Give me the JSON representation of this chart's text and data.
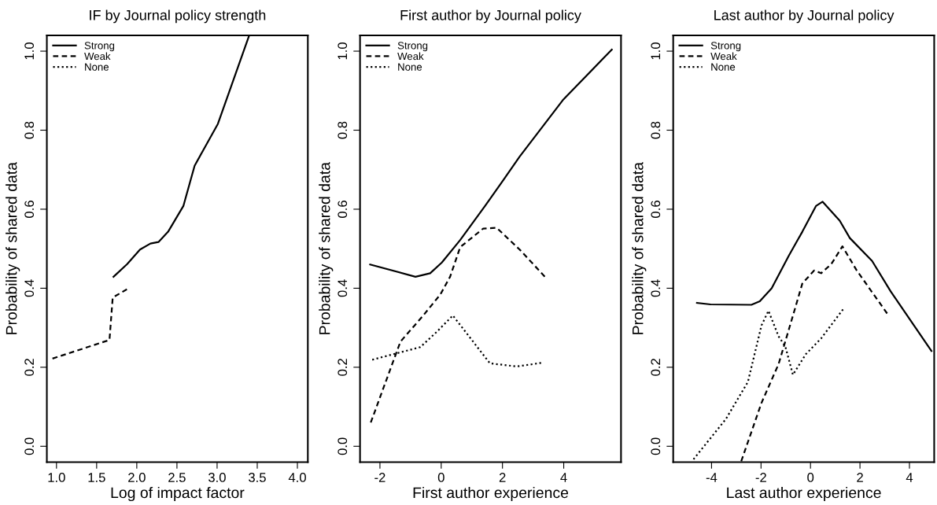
{
  "chart_data": [
    {
      "type": "line",
      "title": "IF by Journal policy strength",
      "xlabel": "Log of impact factor",
      "ylabel": "Probability of shared data",
      "xlim": [
        0.88,
        4.13
      ],
      "ylim": [
        -0.04,
        1.04
      ],
      "xticks": [
        {
          "value": 1,
          "label": "1.0"
        },
        {
          "value": 1.5,
          "label": "1.5"
        },
        {
          "value": 2,
          "label": "2.0"
        },
        {
          "value": 2.5,
          "label": "2.5"
        },
        {
          "value": 3,
          "label": "3.0"
        },
        {
          "value": 3.5,
          "label": "3.5"
        },
        {
          "value": 4,
          "label": "4.0"
        }
      ],
      "yticks": [
        {
          "value": 0,
          "label": "0.0"
        },
        {
          "value": 0.2,
          "label": "0.2"
        },
        {
          "value": 0.4,
          "label": "0.4"
        },
        {
          "value": 0.6,
          "label": "0.6"
        },
        {
          "value": 0.8,
          "label": "0.8"
        },
        {
          "value": 1,
          "label": "1.0"
        }
      ],
      "grid": false,
      "legend": "top left",
      "series": [
        {
          "name": "Strong",
          "color": "#000000",
          "line_style": "solid",
          "x": [
            1.71,
            1.88,
            2.04,
            2.17,
            2.27,
            2.39,
            2.58,
            2.72,
            3.01,
            3.4
          ],
          "values": [
            0.429,
            0.461,
            0.498,
            0.513,
            0.517,
            0.543,
            0.608,
            0.71,
            0.816,
            1.04
          ]
        },
        {
          "name": "Weak",
          "color": "#000000",
          "line_style": "dashed",
          "x": [
            0.95,
            1.66,
            1.7,
            1.73,
            1.9
          ],
          "values": [
            0.222,
            0.269,
            0.376,
            0.38,
            0.4
          ]
        },
        {
          "name": "None",
          "color": "#000000",
          "line_style": "dotted"
        }
      ]
    },
    {
      "type": "line",
      "title": "First author by Journal policy",
      "xlabel": "First author experience",
      "ylabel": "Probability of shared data",
      "xlim": [
        -2.65,
        5.87
      ],
      "ylim": [
        -0.04,
        1.04
      ],
      "xticks": [
        -2,
        0,
        2,
        4
      ],
      "yticks": [
        {
          "value": 0,
          "label": "0.0"
        },
        {
          "value": 0.2,
          "label": "0.2"
        },
        {
          "value": 0.4,
          "label": "0.4"
        },
        {
          "value": 0.6,
          "label": "0.6"
        },
        {
          "value": 0.8,
          "label": "0.8"
        },
        {
          "value": 1,
          "label": "1.0"
        }
      ],
      "grid": false,
      "legend": "top left",
      "series": [
        {
          "name": "Strong",
          "color": "#000000",
          "line_style": "solid",
          "x": [
            -2.32,
            -0.84,
            -0.36,
            0.02,
            0.62,
            1.43,
            2.02,
            2.56,
            3.97,
            5.57
          ],
          "values": [
            0.46,
            0.429,
            0.438,
            0.465,
            0.522,
            0.608,
            0.673,
            0.733,
            0.876,
            1.004
          ]
        },
        {
          "name": "Weak",
          "color": "#000000",
          "line_style": "dashed",
          "x": [
            -2.3,
            -1.33,
            -0.63,
            -0.03,
            0.29,
            0.62,
            1.37,
            1.81,
            2.56,
            3.41
          ],
          "values": [
            0.06,
            0.265,
            0.327,
            0.384,
            0.429,
            0.504,
            0.551,
            0.553,
            0.498,
            0.427
          ]
        },
        {
          "name": "None",
          "color": "#000000",
          "line_style": "dotted",
          "x": [
            -2.25,
            -0.68,
            -0.14,
            0.38,
            1.59,
            2.46,
            3.27
          ],
          "values": [
            0.219,
            0.251,
            0.29,
            0.331,
            0.21,
            0.202,
            0.211
          ]
        }
      ]
    },
    {
      "type": "line",
      "title": "Last author by Journal policy",
      "xlabel": "Last author experience",
      "ylabel": "Probability of shared data",
      "xlim": [
        -5.55,
        5.0
      ],
      "ylim": [
        -0.04,
        1.04
      ],
      "xticks": [
        -4,
        -2,
        0,
        2,
        4
      ],
      "yticks": [
        {
          "value": 0,
          "label": "0.0"
        },
        {
          "value": 0.2,
          "label": "0.2"
        },
        {
          "value": 0.4,
          "label": "0.4"
        },
        {
          "value": 0.6,
          "label": "0.6"
        },
        {
          "value": 0.8,
          "label": "0.8"
        },
        {
          "value": 1,
          "label": "1.0"
        }
      ],
      "grid": false,
      "legend": "top left",
      "series": [
        {
          "name": "Strong",
          "color": "#000000",
          "line_style": "solid",
          "x": [
            -4.59,
            -4.04,
            -2.39,
            -2.05,
            -1.57,
            -0.88,
            -0.33,
            0.22,
            0.49,
            1.18,
            1.59,
            2.49,
            3.24,
            4.89
          ],
          "values": [
            0.363,
            0.359,
            0.358,
            0.367,
            0.4,
            0.482,
            0.543,
            0.608,
            0.619,
            0.571,
            0.527,
            0.469,
            0.392,
            0.241
          ]
        },
        {
          "name": "Weak",
          "color": "#000000",
          "line_style": "dashed",
          "x": [
            -2.8,
            -1.98,
            -1.29,
            -0.67,
            -0.33,
            0.15,
            0.43,
            0.84,
            1.29,
            1.87,
            3.11
          ],
          "values": [
            -0.038,
            0.11,
            0.208,
            0.339,
            0.412,
            0.445,
            0.438,
            0.461,
            0.506,
            0.445,
            0.335
          ]
        },
        {
          "name": "None",
          "color": "#000000",
          "line_style": "dotted",
          "x": [
            -4.73,
            -3.42,
            -2.53,
            -1.98,
            -1.7,
            -1.29,
            -1.02,
            -0.71,
            -0.19,
            0.43,
            1.32
          ],
          "values": [
            -0.033,
            0.069,
            0.163,
            0.306,
            0.343,
            0.278,
            0.253,
            0.181,
            0.233,
            0.273,
            0.347
          ]
        }
      ]
    }
  ]
}
